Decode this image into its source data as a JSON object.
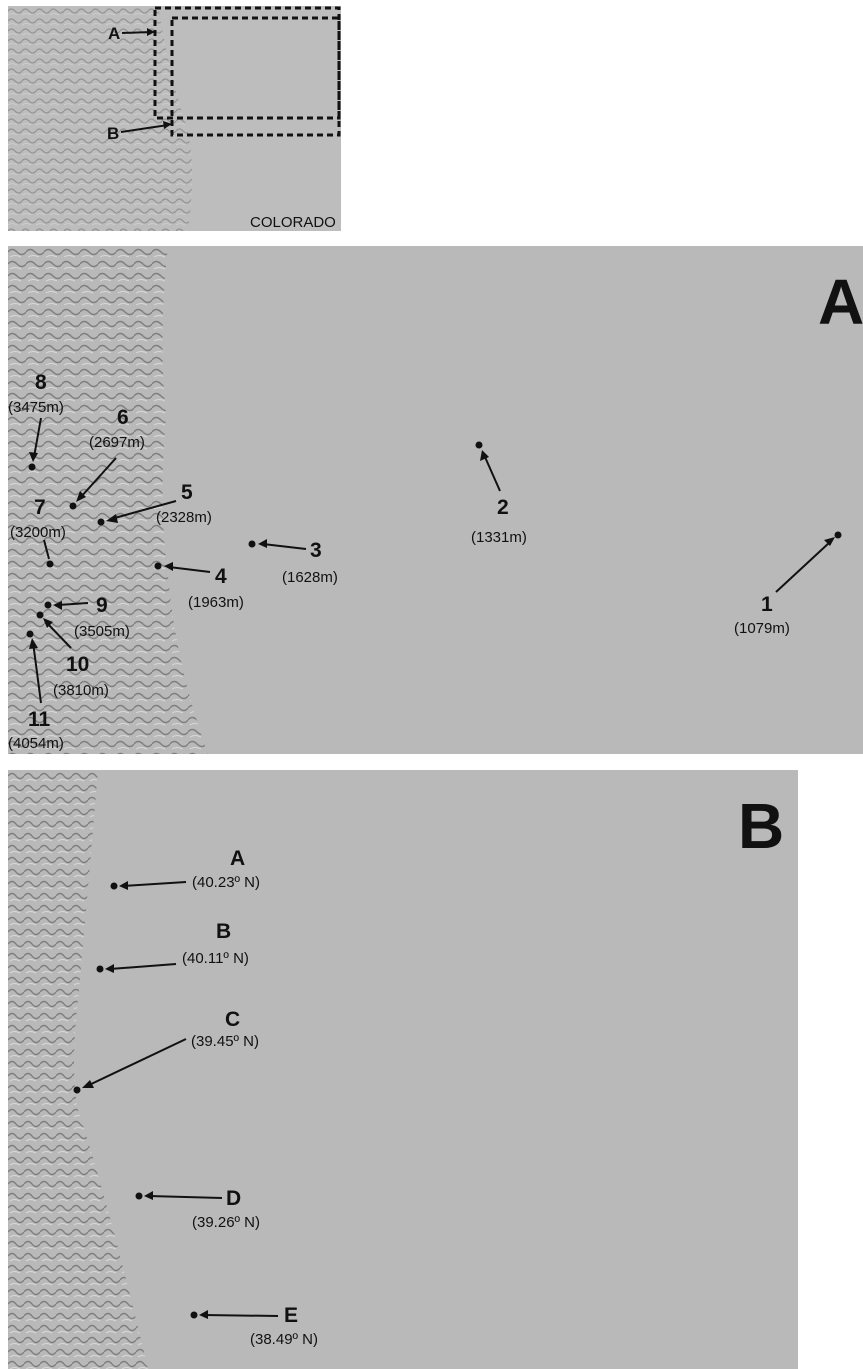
{
  "overview": {
    "state_label": "COLORADO",
    "inset_labels": [
      "A",
      "B"
    ]
  },
  "panelA": {
    "title": "A",
    "sites": [
      {
        "num": "1",
        "elev": "(1079m)"
      },
      {
        "num": "2",
        "elev": "(1331m)"
      },
      {
        "num": "3",
        "elev": "(1628m)"
      },
      {
        "num": "4",
        "elev": "(1963m)"
      },
      {
        "num": "5",
        "elev": "(2328m)"
      },
      {
        "num": "6",
        "elev": "(2697m)"
      },
      {
        "num": "7",
        "elev": "(3200m)"
      },
      {
        "num": "8",
        "elev": "(3475m)"
      },
      {
        "num": "9",
        "elev": "(3505m)"
      },
      {
        "num": "10",
        "elev": "(3810m)"
      },
      {
        "num": "11",
        "elev": "(4054m)"
      }
    ]
  },
  "panelB": {
    "title": "B",
    "sites": [
      {
        "id": "A",
        "lat": "(40.23º N)"
      },
      {
        "id": "B",
        "lat": "(40.11º N)"
      },
      {
        "id": "C",
        "lat": "(39.45º N)"
      },
      {
        "id": "D",
        "lat": "(39.26º N)"
      },
      {
        "id": "E",
        "lat": "(38.49º N)"
      }
    ]
  },
  "colors": {
    "plains": "#b9b9b9",
    "mountains": "#a6a6a6",
    "marker": "#111111"
  }
}
